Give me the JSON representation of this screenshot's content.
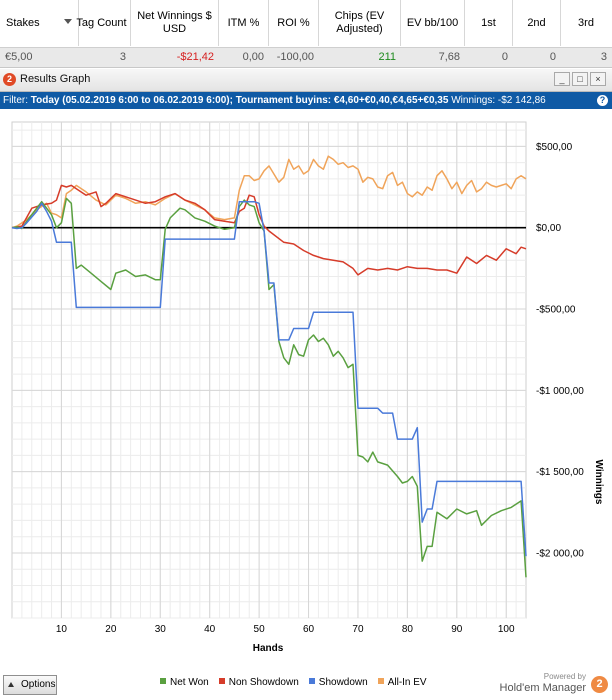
{
  "stats_table": {
    "headers": [
      {
        "key": "stakes",
        "label": "Stakes"
      },
      {
        "key": "tag_count",
        "label": "Tag Count"
      },
      {
        "key": "net_winnings",
        "label": "Net Winnings $ USD"
      },
      {
        "key": "itm",
        "label": "ITM %"
      },
      {
        "key": "roi",
        "label": "ROI %"
      },
      {
        "key": "chips_ev",
        "label": "Chips (EV Adjusted)"
      },
      {
        "key": "ev_bb100",
        "label": "EV bb/100"
      },
      {
        "key": "first",
        "label": "1st"
      },
      {
        "key": "second",
        "label": "2nd"
      },
      {
        "key": "third",
        "label": "3rd"
      }
    ],
    "row": {
      "stakes": "€5,00",
      "tag_count": "3",
      "net_winnings": "-$21,42",
      "itm": "0,00",
      "roi": "-100,00",
      "chips_ev": "211",
      "ev_bb100": "7,68",
      "first": "0",
      "second": "0",
      "third": "3"
    },
    "colors": {
      "negative": "#d62020",
      "positive": "#1c8a1c"
    }
  },
  "window": {
    "title": "Results Graph",
    "icon_text": "2",
    "buttons": [
      {
        "name": "minimize",
        "glyph": "_"
      },
      {
        "name": "maximize",
        "glyph": "□"
      },
      {
        "name": "close",
        "glyph": "×"
      }
    ]
  },
  "filter_bar": {
    "label": "Filter: ",
    "date": "Today (05.02.2019 6:00 to 06.02.2019 6:00);",
    "buyins": "Tournament buyins: €4,60+€0,40,€4,65+€0,35",
    "winnings": "Winnings: -$2 142,86",
    "help_icon": "?"
  },
  "chart_data": {
    "type": "line",
    "xlabel": "Hands",
    "ylabel": "Winnings",
    "xlim": [
      0,
      104
    ],
    "ylim": [
      -2400,
      650
    ],
    "x_ticks": [
      10,
      20,
      30,
      40,
      50,
      60,
      70,
      80,
      90,
      100
    ],
    "y_ticks": [
      {
        "value": 500,
        "label": "$500,00"
      },
      {
        "value": 0,
        "label": "$0,00"
      },
      {
        "value": -500,
        "label": "-$500,00"
      },
      {
        "value": -1000,
        "label": "-$1 000,00"
      },
      {
        "value": -1500,
        "label": "-$1 500,00"
      },
      {
        "value": -2000,
        "label": "-$2 000,00"
      }
    ],
    "grid": true,
    "legend_position": "bottom",
    "series": [
      {
        "name": "Net Won",
        "color": "#5aa040",
        "points": [
          [
            0,
            0
          ],
          [
            1,
            5
          ],
          [
            2,
            -5
          ],
          [
            3,
            40
          ],
          [
            5,
            120
          ],
          [
            6,
            160
          ],
          [
            7,
            120
          ],
          [
            8,
            80
          ],
          [
            9,
            0
          ],
          [
            10,
            30
          ],
          [
            11,
            180
          ],
          [
            12,
            150
          ],
          [
            13,
            -250
          ],
          [
            14,
            -230
          ],
          [
            16,
            -280
          ],
          [
            18,
            -330
          ],
          [
            20,
            -380
          ],
          [
            21,
            -280
          ],
          [
            23,
            -260
          ],
          [
            25,
            -300
          ],
          [
            27,
            -290
          ],
          [
            29,
            -320
          ],
          [
            30,
            -320
          ],
          [
            31,
            -10
          ],
          [
            32,
            60
          ],
          [
            34,
            120
          ],
          [
            35,
            110
          ],
          [
            37,
            60
          ],
          [
            39,
            40
          ],
          [
            41,
            10
          ],
          [
            43,
            -10
          ],
          [
            45,
            0
          ],
          [
            46,
            130
          ],
          [
            47,
            170
          ],
          [
            48,
            140
          ],
          [
            49,
            130
          ],
          [
            50,
            30
          ],
          [
            51,
            -20
          ],
          [
            52,
            -380
          ],
          [
            53,
            -350
          ],
          [
            54,
            -700
          ],
          [
            55,
            -800
          ],
          [
            56,
            -840
          ],
          [
            57,
            -720
          ],
          [
            58,
            -780
          ],
          [
            59,
            -790
          ],
          [
            60,
            -690
          ],
          [
            61,
            -660
          ],
          [
            62,
            -700
          ],
          [
            63,
            -680
          ],
          [
            64,
            -720
          ],
          [
            65,
            -790
          ],
          [
            66,
            -760
          ],
          [
            67,
            -800
          ],
          [
            68,
            -860
          ],
          [
            69,
            -840
          ],
          [
            70,
            -1400
          ],
          [
            71,
            -1410
          ],
          [
            72,
            -1440
          ],
          [
            73,
            -1380
          ],
          [
            74,
            -1440
          ],
          [
            76,
            -1460
          ],
          [
            78,
            -1530
          ],
          [
            79,
            -1570
          ],
          [
            80,
            -1560
          ],
          [
            81,
            -1530
          ],
          [
            82,
            -1590
          ],
          [
            83,
            -2050
          ],
          [
            84,
            -1960
          ],
          [
            85,
            -1960
          ],
          [
            86,
            -1750
          ],
          [
            88,
            -1790
          ],
          [
            90,
            -1730
          ],
          [
            92,
            -1760
          ],
          [
            94,
            -1740
          ],
          [
            95,
            -1830
          ],
          [
            97,
            -1770
          ],
          [
            99,
            -1740
          ],
          [
            101,
            -1720
          ],
          [
            103,
            -1680
          ],
          [
            104,
            -2150
          ]
        ]
      },
      {
        "name": "Non Showdown",
        "color": "#d63c2a",
        "points": [
          [
            0,
            0
          ],
          [
            2,
            10
          ],
          [
            4,
            120
          ],
          [
            6,
            140
          ],
          [
            8,
            150
          ],
          [
            9,
            170
          ],
          [
            10,
            260
          ],
          [
            11,
            250
          ],
          [
            12,
            260
          ],
          [
            13,
            240
          ],
          [
            15,
            200
          ],
          [
            17,
            220
          ],
          [
            18,
            130
          ],
          [
            19,
            150
          ],
          [
            21,
            210
          ],
          [
            23,
            190
          ],
          [
            25,
            170
          ],
          [
            27,
            150
          ],
          [
            29,
            160
          ],
          [
            31,
            190
          ],
          [
            33,
            210
          ],
          [
            35,
            170
          ],
          [
            37,
            150
          ],
          [
            39,
            110
          ],
          [
            41,
            50
          ],
          [
            43,
            40
          ],
          [
            45,
            30
          ],
          [
            46,
            100
          ],
          [
            47,
            120
          ],
          [
            48,
            200
          ],
          [
            49,
            190
          ],
          [
            50,
            80
          ],
          [
            51,
            10
          ],
          [
            52,
            -20
          ],
          [
            55,
            -90
          ],
          [
            57,
            -100
          ],
          [
            59,
            -140
          ],
          [
            61,
            -170
          ],
          [
            63,
            -190
          ],
          [
            65,
            -200
          ],
          [
            67,
            -210
          ],
          [
            69,
            -250
          ],
          [
            70,
            -290
          ],
          [
            72,
            -250
          ],
          [
            74,
            -260
          ],
          [
            76,
            -250
          ],
          [
            78,
            -260
          ],
          [
            80,
            -240
          ],
          [
            82,
            -250
          ],
          [
            84,
            -250
          ],
          [
            86,
            -260
          ],
          [
            88,
            -260
          ],
          [
            90,
            -280
          ],
          [
            92,
            -180
          ],
          [
            94,
            -220
          ],
          [
            96,
            -170
          ],
          [
            98,
            -200
          ],
          [
            100,
            -130
          ],
          [
            102,
            -160
          ],
          [
            103,
            -120
          ],
          [
            104,
            -130
          ]
        ]
      },
      {
        "name": "Showdown",
        "color": "#4a7ad9",
        "points": [
          [
            0,
            0
          ],
          [
            1,
            -5
          ],
          [
            2,
            0
          ],
          [
            3,
            30
          ],
          [
            5,
            100
          ],
          [
            6,
            150
          ],
          [
            7,
            100
          ],
          [
            8,
            40
          ],
          [
            9,
            -90
          ],
          [
            10,
            -90
          ],
          [
            11,
            -90
          ],
          [
            12,
            -90
          ],
          [
            13,
            -490
          ],
          [
            20,
            -490
          ],
          [
            25,
            -490
          ],
          [
            30,
            -490
          ],
          [
            31,
            -70
          ],
          [
            40,
            -70
          ],
          [
            45,
            -70
          ],
          [
            46,
            160
          ],
          [
            49,
            160
          ],
          [
            50,
            150
          ],
          [
            51,
            -20
          ],
          [
            52,
            -340
          ],
          [
            53,
            -340
          ],
          [
            54,
            -690
          ],
          [
            56,
            -690
          ],
          [
            57,
            -620
          ],
          [
            60,
            -620
          ],
          [
            61,
            -520
          ],
          [
            65,
            -520
          ],
          [
            69,
            -520
          ],
          [
            70,
            -1110
          ],
          [
            74,
            -1110
          ],
          [
            75,
            -1140
          ],
          [
            77,
            -1140
          ],
          [
            78,
            -1300
          ],
          [
            81,
            -1300
          ],
          [
            82,
            -1230
          ],
          [
            83,
            -1810
          ],
          [
            84,
            -1730
          ],
          [
            85,
            -1730
          ],
          [
            86,
            -1560
          ],
          [
            92,
            -1560
          ],
          [
            95,
            -1560
          ],
          [
            100,
            -1560
          ],
          [
            103,
            -1560
          ],
          [
            104,
            -2020
          ]
        ]
      },
      {
        "name": "All-In EV",
        "color": "#f0a45a",
        "points": [
          [
            0,
            0
          ],
          [
            1,
            10
          ],
          [
            3,
            50
          ],
          [
            5,
            110
          ],
          [
            7,
            150
          ],
          [
            8,
            90
          ],
          [
            9,
            80
          ],
          [
            10,
            60
          ],
          [
            11,
            210
          ],
          [
            12,
            230
          ],
          [
            13,
            260
          ],
          [
            15,
            220
          ],
          [
            17,
            170
          ],
          [
            19,
            140
          ],
          [
            21,
            200
          ],
          [
            23,
            180
          ],
          [
            25,
            150
          ],
          [
            27,
            160
          ],
          [
            29,
            140
          ],
          [
            31,
            180
          ],
          [
            33,
            210
          ],
          [
            35,
            170
          ],
          [
            37,
            140
          ],
          [
            39,
            110
          ],
          [
            41,
            60
          ],
          [
            43,
            50
          ],
          [
            45,
            60
          ],
          [
            46,
            230
          ],
          [
            47,
            320
          ],
          [
            48,
            320
          ],
          [
            49,
            290
          ],
          [
            50,
            300
          ],
          [
            51,
            350
          ],
          [
            52,
            380
          ],
          [
            53,
            330
          ],
          [
            54,
            280
          ],
          [
            55,
            310
          ],
          [
            56,
            420
          ],
          [
            57,
            360
          ],
          [
            58,
            380
          ],
          [
            59,
            330
          ],
          [
            60,
            350
          ],
          [
            61,
            420
          ],
          [
            62,
            380
          ],
          [
            63,
            360
          ],
          [
            64,
            440
          ],
          [
            65,
            420
          ],
          [
            66,
            390
          ],
          [
            67,
            400
          ],
          [
            68,
            370
          ],
          [
            69,
            380
          ],
          [
            70,
            360
          ],
          [
            71,
            280
          ],
          [
            72,
            310
          ],
          [
            73,
            300
          ],
          [
            74,
            250
          ],
          [
            75,
            240
          ],
          [
            76,
            320
          ],
          [
            77,
            340
          ],
          [
            78,
            260
          ],
          [
            79,
            280
          ],
          [
            80,
            210
          ],
          [
            81,
            190
          ],
          [
            82,
            220
          ],
          [
            83,
            200
          ],
          [
            84,
            250
          ],
          [
            85,
            230
          ],
          [
            86,
            320
          ],
          [
            87,
            350
          ],
          [
            88,
            300
          ],
          [
            89,
            240
          ],
          [
            90,
            280
          ],
          [
            91,
            210
          ],
          [
            92,
            260
          ],
          [
            93,
            290
          ],
          [
            94,
            220
          ],
          [
            95,
            240
          ],
          [
            96,
            280
          ],
          [
            97,
            260
          ],
          [
            98,
            250
          ],
          [
            99,
            260
          ],
          [
            100,
            270
          ],
          [
            101,
            240
          ],
          [
            102,
            300
          ],
          [
            103,
            320
          ],
          [
            104,
            300
          ]
        ]
      }
    ]
  },
  "bottom_bar": {
    "options_label": "Options",
    "powered_by": "Powered by",
    "brand_name": "Hold'em Manager",
    "brand_logo": "2"
  }
}
